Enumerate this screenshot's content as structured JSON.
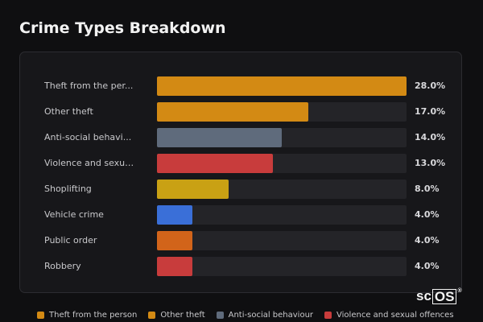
{
  "title": "Crime Types Breakdown",
  "brand": {
    "text_left": "sc",
    "text_box": "OS",
    "mark": "®"
  },
  "chart_data": {
    "type": "bar",
    "orientation": "horizontal",
    "title": "Crime Types Breakdown",
    "xlim": [
      0,
      28
    ],
    "unit": "%",
    "grid": false,
    "legend_placement": "bottom",
    "categories": [
      "Theft from the person",
      "Other theft",
      "Anti-social behaviour",
      "Violence and sexual offences",
      "Shoplifting",
      "Vehicle crime",
      "Public order",
      "Robbery"
    ],
    "display_labels": [
      "Theft from the per...",
      "Other theft",
      "Anti-social behavi...",
      "Violence and sexua...",
      "Shoplifting",
      "Vehicle crime",
      "Public order",
      "Robbery"
    ],
    "values": [
      28.0,
      17.0,
      14.0,
      13.0,
      8.0,
      4.0,
      4.0,
      4.0
    ],
    "value_labels": [
      "28.0%",
      "17.0%",
      "14.0%",
      "13.0%",
      "8.0%",
      "4.0%",
      "4.0%",
      "4.0%"
    ],
    "colors": [
      "#d38a14",
      "#d38a14",
      "#5f6b7c",
      "#c83c3c",
      "#c9a114",
      "#3a6fd8",
      "#d2641a",
      "#c83c3c"
    ]
  },
  "legend": [
    {
      "label": "Theft from the person",
      "color": "#d38a14"
    },
    {
      "label": "Other theft",
      "color": "#d38a14"
    },
    {
      "label": "Anti-social behaviour",
      "color": "#5f6b7c"
    },
    {
      "label": "Violence and sexual offences",
      "color": "#c83c3c"
    }
  ]
}
